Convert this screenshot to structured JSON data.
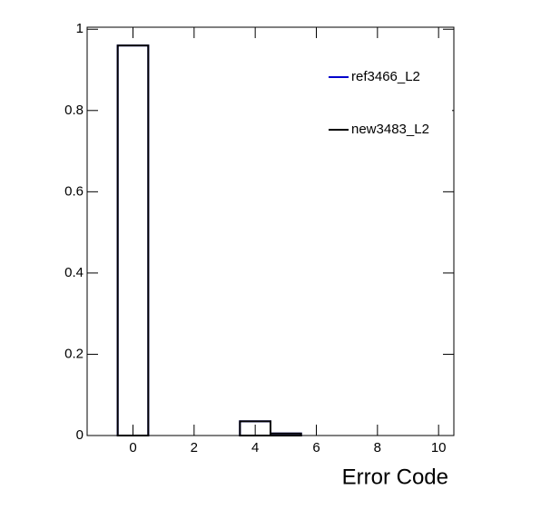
{
  "chart_data": {
    "type": "histogram",
    "x_label": "Error Code",
    "bins": [
      -1.5,
      -0.5,
      0.5,
      1.5,
      2.5,
      3.5,
      4.5,
      5.5,
      6.5,
      7.5,
      8.5,
      9.5,
      10.5
    ],
    "series": [
      {
        "name": "ref3466_L2",
        "color": "#0000cc",
        "values": [
          0,
          0.96,
          0,
          0,
          0,
          0.035,
          0.005,
          0,
          0,
          0,
          0,
          0
        ]
      },
      {
        "name": "new3483_L2",
        "color": "#000000",
        "values": [
          0,
          0.96,
          0,
          0,
          0,
          0.035,
          0.005,
          0,
          0,
          0,
          0,
          0
        ]
      }
    ],
    "xlim": [
      -1.5,
      10.5
    ],
    "xticks": [
      0,
      2,
      4,
      6,
      8,
      10
    ],
    "ylim": [
      0,
      1.005
    ],
    "yticks": [
      0,
      0.2,
      0.4,
      0.6,
      0.8,
      1
    ],
    "grid": false,
    "legend": "top-right"
  }
}
